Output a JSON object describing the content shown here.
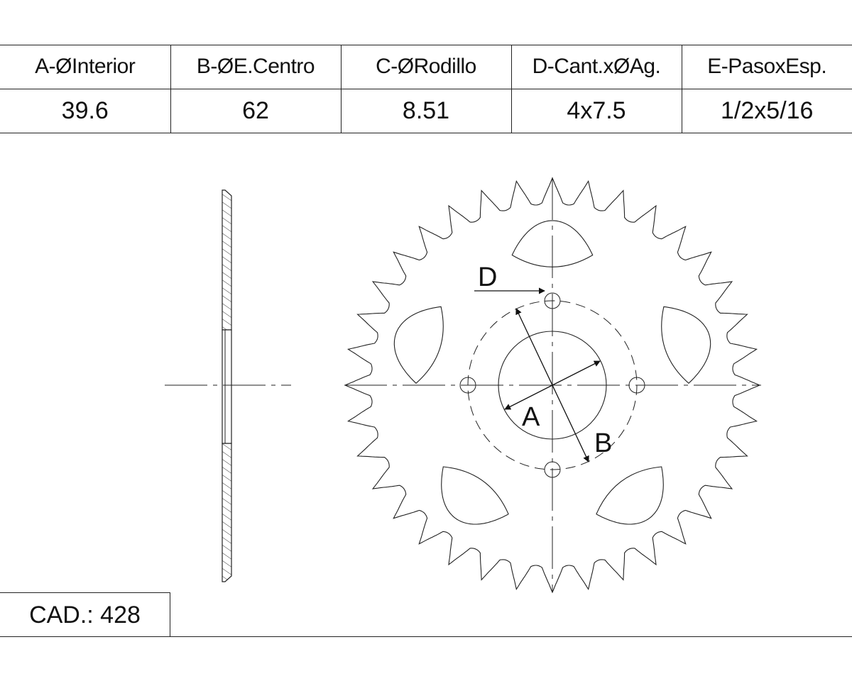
{
  "specs": {
    "headers": [
      "A-ØInterior",
      "B-ØE.Centro",
      "C-ØRodillo",
      "D-Cant.xØAg.",
      "E-PasoxEsp."
    ],
    "values": [
      "39.6",
      "62",
      "8.51",
      "4x7.5",
      "1/2x5/16"
    ]
  },
  "drawing": {
    "teeth": 36,
    "bolt_holes": 4,
    "cutouts": 5,
    "labels": {
      "a": "A",
      "b": "B",
      "d": "D"
    }
  },
  "cad": "CAD.: 428"
}
